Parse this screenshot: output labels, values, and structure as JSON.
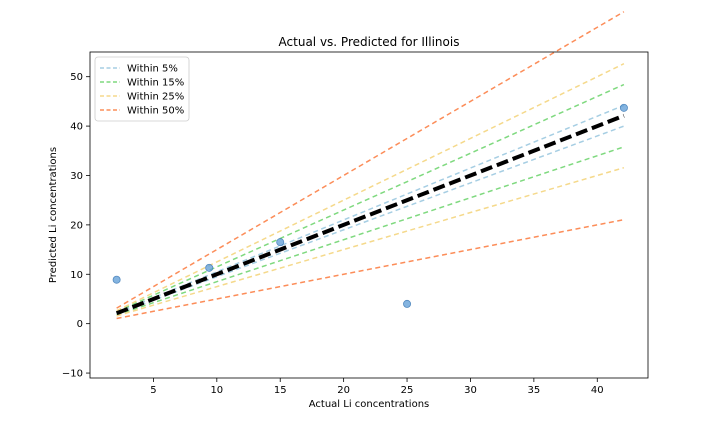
{
  "chart_data": {
    "type": "scatter",
    "title": "Actual vs. Predicted for Illinois",
    "xlabel": "Actual Li concentrations",
    "ylabel": "Predicted Li concentrations",
    "xlim": [
      0,
      44
    ],
    "ylim": [
      -11,
      55
    ],
    "xticks": [
      5,
      10,
      15,
      20,
      25,
      30,
      35,
      40
    ],
    "yticks": [
      -10,
      0,
      10,
      20,
      30,
      40,
      50
    ],
    "x_range": [
      2.1,
      42.1
    ],
    "grid": false,
    "legend_position": "top-left",
    "points": {
      "x": [
        2.1,
        9.4,
        15.0,
        25.0,
        42.1
      ],
      "y": [
        8.9,
        11.3,
        16.5,
        4.0,
        43.7
      ],
      "color": "#5b9bd5"
    },
    "identity_line": {
      "color": "#000000",
      "style": "dashed"
    },
    "bands": [
      {
        "label": "Within 5%",
        "fraction": 0.05,
        "color": "#a6cee3"
      },
      {
        "label": "Within 15%",
        "fraction": 0.15,
        "color": "#7fd97f"
      },
      {
        "label": "Within 25%",
        "fraction": 0.25,
        "color": "#f5d98b"
      },
      {
        "label": "Within 50%",
        "fraction": 0.5,
        "color": "#fc8d59"
      }
    ]
  }
}
